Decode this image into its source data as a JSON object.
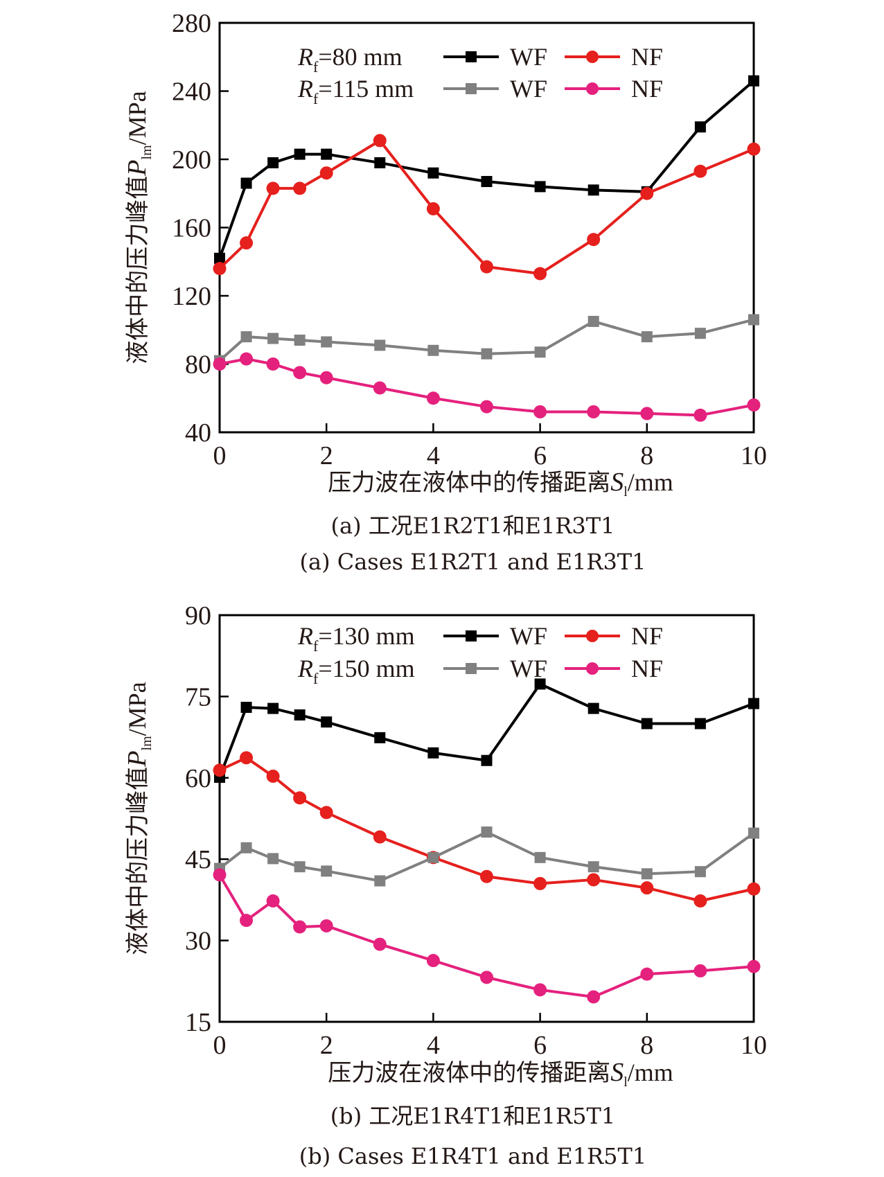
{
  "chart_data": [
    {
      "type": "line",
      "panel": "a",
      "xlabel": "压力波在液体中的传播距离S_l/mm",
      "xlabel_main": "压力波在液体中的传播距离",
      "xlabel_var": "S",
      "xlabel_sub": "l",
      "xlabel_unit": "/mm",
      "ylabel": "液体中的压力峰值P_lm/MPa",
      "ylabel_main": "液体中的压力峰值",
      "ylabel_var": "P",
      "ylabel_sub": "lm",
      "ylabel_unit": "/MPa",
      "xlim": [
        0,
        10
      ],
      "ylim": [
        40,
        280
      ],
      "xticks": [
        0,
        2,
        4,
        6,
        8,
        10
      ],
      "yticks": [
        40,
        80,
        120,
        160,
        200,
        240,
        280
      ],
      "grid": false,
      "legend_position": "top",
      "legend_rows": [
        {
          "label": "=80 mm",
          "var": "R",
          "sub": "f",
          "series": [
            0,
            1
          ]
        },
        {
          "label": "=115 mm",
          "var": "R",
          "sub": "f",
          "series": [
            2,
            3
          ]
        }
      ],
      "caption_cn": "(a) 工况E1R2T1和E1R3T1",
      "caption_en": "(a) Cases E1R2T1 and E1R3T1",
      "x": [
        0,
        0.5,
        1,
        1.5,
        2,
        3,
        4,
        5,
        6,
        7,
        8,
        9,
        10
      ],
      "series": [
        {
          "name": "WF",
          "group": "Rf=80 mm",
          "color": "#000000",
          "marker": "square",
          "values": [
            142,
            186,
            198,
            203,
            203,
            198,
            192,
            187,
            184,
            182,
            181,
            219,
            246
          ]
        },
        {
          "name": "NF",
          "group": "Rf=80 mm",
          "color": "#e5201d",
          "marker": "circle",
          "values": [
            136,
            151,
            183,
            183,
            192,
            211,
            171,
            137,
            133,
            153,
            180,
            193,
            206
          ]
        },
        {
          "name": "WF",
          "group": "Rf=115 mm",
          "color": "#808080",
          "marker": "square",
          "values": [
            82,
            96,
            95,
            94,
            93,
            91,
            88,
            86,
            87,
            105,
            96,
            98,
            106
          ]
        },
        {
          "name": "NF",
          "group": "Rf=115 mm",
          "color": "#e4217d",
          "marker": "circle",
          "values": [
            80,
            83,
            80,
            75,
            72,
            66,
            60,
            55,
            52,
            52,
            51,
            50,
            56
          ]
        }
      ]
    },
    {
      "type": "line",
      "panel": "b",
      "xlabel": "压力波在液体中的传播距离S_l/mm",
      "xlabel_main": "压力波在液体中的传播距离",
      "xlabel_var": "S",
      "xlabel_sub": "l",
      "xlabel_unit": "/mm",
      "ylabel": "液体中的压力峰值P_lm/MPa",
      "ylabel_main": "液体中的压力峰值",
      "ylabel_var": "P",
      "ylabel_sub": "lm",
      "ylabel_unit": "/MPa",
      "xlim": [
        0,
        10
      ],
      "ylim": [
        15,
        90
      ],
      "xticks": [
        0,
        2,
        4,
        6,
        8,
        10
      ],
      "yticks": [
        15,
        30,
        45,
        60,
        75,
        90
      ],
      "grid": false,
      "legend_position": "top",
      "legend_rows": [
        {
          "label": "=130 mm",
          "var": "R",
          "sub": "f",
          "series": [
            0,
            1
          ]
        },
        {
          "label": "=150 mm",
          "var": "R",
          "sub": "f",
          "series": [
            2,
            3
          ]
        }
      ],
      "caption_cn": "(b) 工况E1R4T1和E1R5T1",
      "caption_en": "(b) Cases E1R4T1 and E1R5T1",
      "x": [
        0,
        0.5,
        1,
        1.5,
        2,
        3,
        4,
        5,
        6,
        7,
        8,
        9,
        10
      ],
      "series": [
        {
          "name": "WF",
          "group": "Rf=130 mm",
          "color": "#000000",
          "marker": "square",
          "values": [
            60.1,
            73.0,
            72.8,
            71.6,
            70.3,
            67.4,
            64.6,
            63.2,
            77.3,
            72.8,
            70.0,
            70.0,
            73.7
          ]
        },
        {
          "name": "NF",
          "group": "Rf=130 mm",
          "color": "#e5201d",
          "marker": "circle",
          "values": [
            61.4,
            63.7,
            60.3,
            56.3,
            53.6,
            49.1,
            45.3,
            41.8,
            40.5,
            41.2,
            39.7,
            37.3,
            39.5
          ]
        },
        {
          "name": "WF",
          "group": "Rf=150 mm",
          "color": "#808080",
          "marker": "square",
          "values": [
            43.3,
            47.1,
            45.1,
            43.6,
            42.8,
            41.0,
            45.3,
            50.0,
            45.3,
            43.6,
            42.3,
            42.7,
            49.8
          ]
        },
        {
          "name": "NF",
          "group": "Rf=150 mm",
          "color": "#e4217d",
          "marker": "circle",
          "values": [
            42.1,
            33.7,
            37.3,
            32.5,
            32.7,
            29.3,
            26.3,
            23.2,
            20.9,
            19.6,
            23.8,
            24.4,
            25.2
          ]
        }
      ]
    }
  ]
}
